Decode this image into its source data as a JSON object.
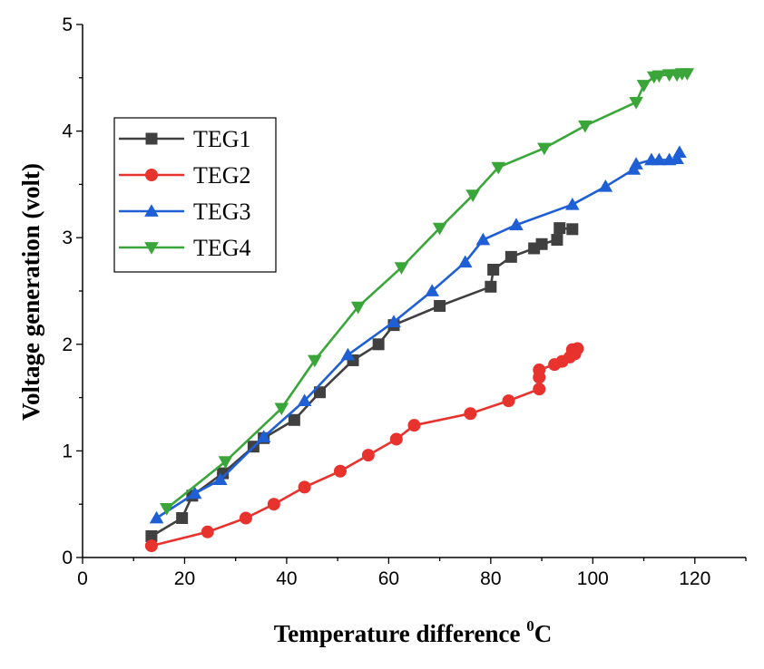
{
  "chart_data": {
    "type": "line",
    "title": "",
    "xlabel": "Temperature difference",
    "xlabel_sup": "0",
    "xlabel_unit": "C",
    "ylabel": "Voltage generation (volt)",
    "xlim": [
      0,
      130
    ],
    "ylim": [
      0,
      5
    ],
    "xticks": [
      0,
      20,
      40,
      60,
      80,
      100,
      120
    ],
    "yticks": [
      0,
      1,
      2,
      3,
      4,
      5
    ],
    "grid": false,
    "legend_position": "left",
    "series": [
      {
        "name": "TEG1",
        "color": "#404040",
        "marker": "square",
        "x": [
          13.5,
          19.5,
          21.5,
          27.5,
          33.5,
          35.5,
          41.5,
          46.5,
          53,
          58,
          61,
          70,
          80,
          80.5,
          84,
          88.5,
          90,
          93,
          93.5,
          96
        ],
        "y": [
          0.2,
          0.37,
          0.58,
          0.79,
          1.04,
          1.12,
          1.29,
          1.55,
          1.85,
          2.0,
          2.18,
          2.36,
          2.54,
          2.7,
          2.82,
          2.9,
          2.94,
          2.98,
          3.09,
          3.08
        ]
      },
      {
        "name": "TEG2",
        "color": "#e8322d",
        "marker": "circle",
        "x": [
          13.5,
          24.5,
          32,
          37.5,
          43.5,
          50.5,
          56,
          61.5,
          65,
          76,
          83.5,
          89.5,
          89.5,
          89.5,
          92.5,
          94,
          95.5,
          96,
          96.5,
          97
        ],
        "y": [
          0.11,
          0.24,
          0.37,
          0.5,
          0.66,
          0.81,
          0.96,
          1.11,
          1.24,
          1.35,
          1.47,
          1.58,
          1.69,
          1.76,
          1.81,
          1.84,
          1.88,
          1.95,
          1.91,
          1.96
        ]
      },
      {
        "name": "TEG3",
        "color": "#1f5fd6",
        "marker": "triangle-up",
        "x": [
          14.5,
          22,
          27,
          35.5,
          43.5,
          52,
          61,
          68.5,
          75,
          78.5,
          85,
          96,
          102.5,
          108,
          108.5,
          111.5,
          113,
          115,
          116.5,
          117
        ],
        "y": [
          0.37,
          0.6,
          0.73,
          1.13,
          1.47,
          1.9,
          2.21,
          2.5,
          2.77,
          2.98,
          3.12,
          3.31,
          3.48,
          3.64,
          3.69,
          3.73,
          3.73,
          3.73,
          3.74,
          3.8
        ]
      },
      {
        "name": "TEG4",
        "color": "#3aa63a",
        "marker": "triangle-down",
        "x": [
          16.5,
          28,
          39,
          45.5,
          54,
          62.5,
          70,
          76.5,
          81.5,
          90.5,
          98.5,
          108.5,
          110,
          112,
          113,
          115,
          116.5,
          117.5,
          118.5
        ],
        "y": [
          0.46,
          0.9,
          1.4,
          1.85,
          2.35,
          2.72,
          3.09,
          3.4,
          3.66,
          3.84,
          4.05,
          4.27,
          4.43,
          4.51,
          4.52,
          4.53,
          4.53,
          4.54,
          4.54
        ]
      }
    ]
  }
}
